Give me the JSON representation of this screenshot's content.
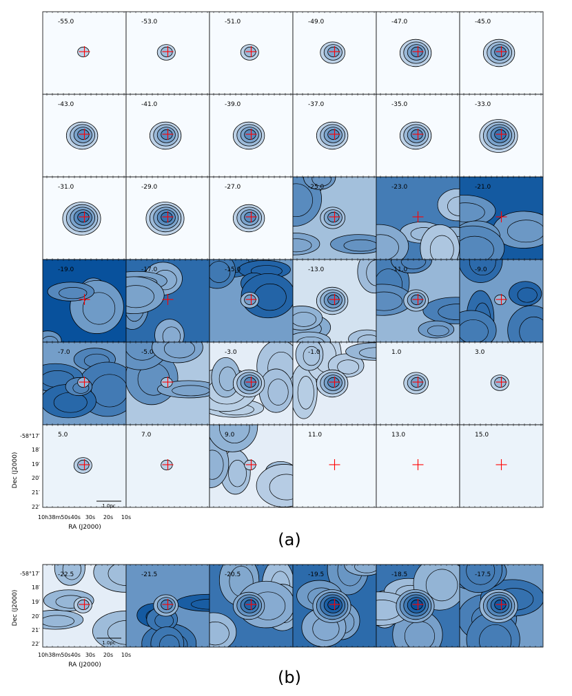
{
  "chart_data": [
    {
      "type": "heatmap",
      "label": "(a)",
      "panel_labels": [
        "-55.0",
        "-53.0",
        "-51.0",
        "-49.0",
        "-47.0",
        "-45.0",
        "-43.0",
        "-41.0",
        "-39.0",
        "-37.0",
        "-35.0",
        "-33.0",
        "-31.0",
        "-29.0",
        "-27.0",
        "-25.0",
        "-23.0",
        "-21.0",
        "-19.0",
        "-17.0",
        "-15.0",
        "-13.0",
        "-11.0",
        "-9.0",
        "-7.0",
        "-5.0",
        "-3.0",
        "-1.0",
        "1.0",
        "3.0",
        "5.0",
        "7.0",
        "9.0",
        "11.0",
        "13.0",
        "15.0"
      ],
      "background_intensity": [
        0,
        0,
        0,
        0,
        0,
        0,
        0,
        0,
        0,
        0,
        0,
        0,
        0,
        0,
        0,
        0.35,
        0.75,
        0.95,
        1.0,
        0.85,
        0.55,
        0.15,
        0.4,
        0.55,
        0.55,
        0.3,
        0.08,
        0.08,
        0.05,
        0.05,
        0.05,
        0.05,
        0.08,
        0.02,
        0.02,
        0.05
      ],
      "core_levels": [
        1,
        2,
        2,
        3,
        4,
        4,
        4,
        4,
        4,
        4,
        4,
        5,
        5,
        5,
        4,
        3,
        0,
        0,
        0,
        0,
        2,
        4,
        3,
        1,
        1,
        1,
        4,
        4,
        3,
        2,
        2,
        1,
        1,
        0,
        0,
        0
      ],
      "xlabel": "RA (J2000)",
      "ylabel": "Dec (J2000)",
      "x_ticks": [
        "10h38m50s40s",
        "30s",
        "20s",
        "10s"
      ],
      "y_ticks": [
        "-58°17′",
        "18′",
        "19′",
        "20′",
        "21′",
        "22′"
      ],
      "scale_bar": "1.0pc",
      "colormap": "Blues",
      "marker": "red cross"
    },
    {
      "type": "heatmap",
      "label": "(b)",
      "panel_labels": [
        "-22.5",
        "-21.5",
        "-20.5",
        "-19.5",
        "-18.5",
        "-17.5"
      ],
      "background_intensity": [
        0.08,
        0.6,
        0.8,
        0.85,
        0.8,
        0.55
      ],
      "core_levels": [
        2,
        3,
        4,
        5,
        5,
        5
      ],
      "xlabel": "RA (J2000)",
      "ylabel": "Dec (J2000)",
      "x_ticks": [
        "10h38m50s40s",
        "30s",
        "20s",
        "10s"
      ],
      "y_ticks": [
        "-58°17′",
        "18′",
        "19′",
        "20′",
        "21′",
        "22′"
      ],
      "scale_bar": "1.0pc",
      "colormap": "Blues",
      "marker": "red cross"
    }
  ],
  "colors": {
    "cmap_low": "#f7fbff",
    "cmap_high": "#08519c",
    "contour": "#000000",
    "marker": "#ff0000"
  }
}
